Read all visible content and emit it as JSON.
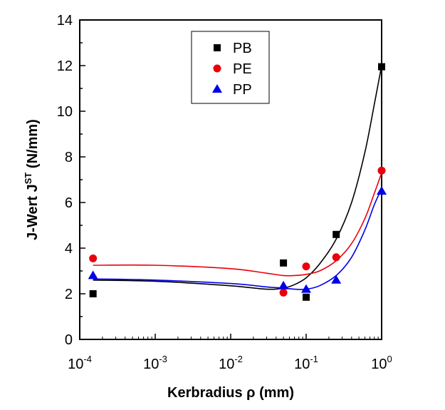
{
  "chart_data": {
    "type": "scatter",
    "xlabel": "Kerbradius ρ (mm)",
    "ylabel": "J-Wert J",
    "ylabel_sup": "ST",
    "ylabel_unit": " (N/mm)",
    "x_scale": "log",
    "xlim": [
      0.0001,
      1
    ],
    "ylim": [
      0,
      14
    ],
    "x_ticks": [
      {
        "base": "10",
        "exp": "-4",
        "value": 0.0001
      },
      {
        "base": "10",
        "exp": "-3",
        "value": 0.001
      },
      {
        "base": "10",
        "exp": "-2",
        "value": 0.01
      },
      {
        "base": "10",
        "exp": "-1",
        "value": 0.1
      },
      {
        "base": "10",
        "exp": "0",
        "value": 1
      }
    ],
    "y_ticks": [
      "0",
      "2",
      "4",
      "6",
      "8",
      "10",
      "12",
      "14"
    ],
    "legend_position": "top-center",
    "series": [
      {
        "name": "PB",
        "marker": "square",
        "color": "#000000",
        "x": [
          0.00015,
          0.05,
          0.1,
          0.25,
          1.0
        ],
        "y": [
          2.0,
          3.35,
          1.85,
          4.6,
          11.95
        ]
      },
      {
        "name": "PE",
        "marker": "circle",
        "color": "#e8000b",
        "x": [
          0.00015,
          0.05,
          0.1,
          0.25,
          1.0
        ],
        "y": [
          3.55,
          2.05,
          3.2,
          3.6,
          7.4
        ]
      },
      {
        "name": "PP",
        "marker": "triangle",
        "color": "#0000e6",
        "x": [
          0.00015,
          0.05,
          0.1,
          0.25,
          1.0
        ],
        "y": [
          2.8,
          2.35,
          2.2,
          2.6,
          6.5
        ]
      }
    ],
    "fit_curves": [
      {
        "series": "PB",
        "color": "#000000",
        "x": [
          0.00015,
          0.001,
          0.01,
          0.03,
          0.05,
          0.07,
          0.1,
          0.15,
          0.25,
          0.4,
          0.6,
          0.8,
          1.0
        ],
        "y": [
          2.6,
          2.55,
          2.35,
          2.2,
          2.25,
          2.4,
          2.7,
          3.3,
          4.4,
          6.0,
          8.2,
          10.3,
          12.0
        ]
      },
      {
        "series": "PE",
        "color": "#e8000b",
        "x": [
          0.00015,
          0.001,
          0.01,
          0.03,
          0.05,
          0.07,
          0.1,
          0.15,
          0.25,
          0.4,
          0.6,
          0.8,
          1.0
        ],
        "y": [
          3.25,
          3.25,
          3.1,
          2.9,
          2.8,
          2.8,
          2.85,
          3.0,
          3.45,
          4.2,
          5.3,
          6.4,
          7.3
        ]
      },
      {
        "series": "PP",
        "color": "#0000e6",
        "x": [
          0.00015,
          0.001,
          0.01,
          0.03,
          0.05,
          0.07,
          0.1,
          0.15,
          0.25,
          0.4,
          0.6,
          0.8,
          1.0
        ],
        "y": [
          2.65,
          2.6,
          2.45,
          2.3,
          2.25,
          2.2,
          2.2,
          2.35,
          2.8,
          3.6,
          4.8,
          5.9,
          6.6
        ]
      }
    ]
  }
}
